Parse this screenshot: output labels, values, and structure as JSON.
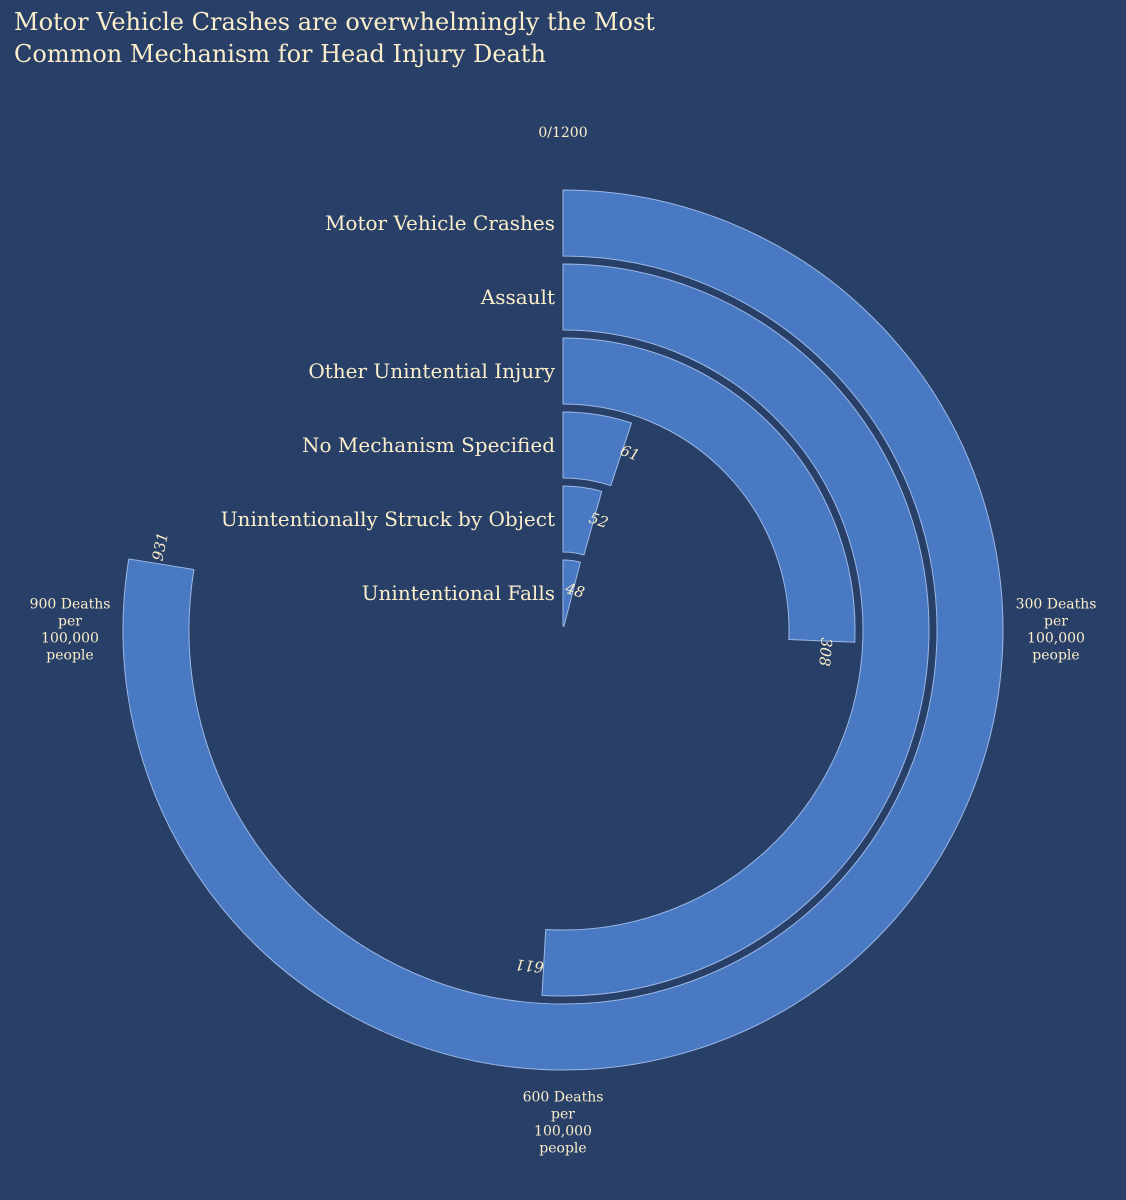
{
  "chart_data": {
    "type": "bar",
    "subtype": "radial",
    "title_lines": [
      "Motor Vehicle Crashes are overwhelmingly the Most",
      "Common Mechanism for Head Injury Death"
    ],
    "categories": [
      "Motor Vehicle Crashes",
      "Assault",
      "Other Unintential Injury",
      "No Mechanism Specified",
      "Unintentionally Struck by Object",
      "Unintentional Falls"
    ],
    "values": [
      931,
      611,
      308,
      61,
      52,
      48
    ],
    "max": 1200,
    "axis_ticks": [
      {
        "value": 0,
        "lines": [
          "0/1200"
        ]
      },
      {
        "value": 300,
        "lines": [
          "300 Deaths",
          "per",
          "100,000",
          "people"
        ]
      },
      {
        "value": 600,
        "lines": [
          "600 Deaths",
          "per",
          "100,000",
          "people"
        ]
      },
      {
        "value": 900,
        "lines": [
          "900 Deaths",
          "per",
          "100,000",
          "people"
        ]
      }
    ],
    "colors": {
      "background": "#283f68",
      "bar": "#4a79c4",
      "bar_stroke": "#9bb8e6",
      "text": "#fbeecb"
    }
  }
}
